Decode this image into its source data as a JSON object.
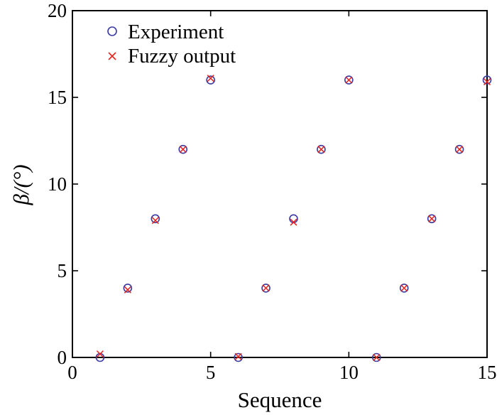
{
  "chart_data": {
    "type": "scatter",
    "title": "",
    "xlabel": "Sequence",
    "ylabel": "β/(°)",
    "xlim": [
      0,
      15
    ],
    "ylim": [
      0,
      20
    ],
    "xticks": [
      "0",
      "5",
      "10",
      "15"
    ],
    "yticks": [
      "0",
      "5",
      "10",
      "15",
      "20"
    ],
    "grid": false,
    "legend_position": "top-left",
    "series": [
      {
        "name": "Experiment",
        "marker": "circle",
        "color": "#3a3aa0",
        "x": [
          1,
          2,
          3,
          4,
          5,
          6,
          7,
          8,
          9,
          10,
          11,
          12,
          13,
          14,
          15
        ],
        "y": [
          0,
          4,
          8,
          12,
          16,
          0,
          4,
          8,
          12,
          16,
          0,
          4,
          8,
          12,
          16
        ]
      },
      {
        "name": "Fuzzy output",
        "marker": "x",
        "color": "#e8231d",
        "x": [
          1,
          2,
          3,
          4,
          5,
          6,
          7,
          8,
          9,
          10,
          11,
          12,
          13,
          14,
          15
        ],
        "y": [
          0.2,
          3.9,
          7.9,
          12.0,
          16.1,
          0.05,
          4.0,
          7.8,
          12.0,
          16.0,
          0.0,
          4.0,
          8.0,
          12.0,
          15.9
        ]
      }
    ]
  }
}
